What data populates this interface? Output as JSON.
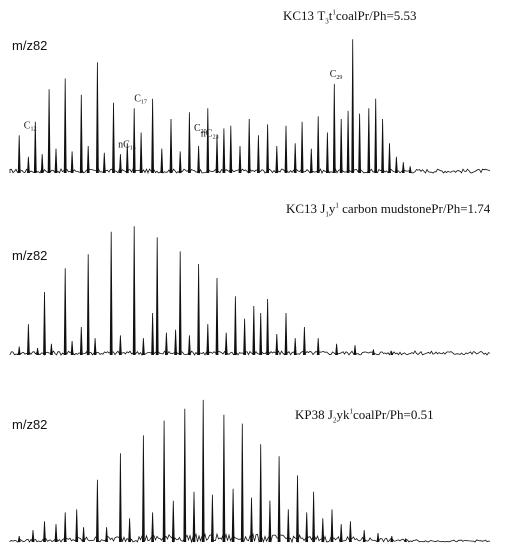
{
  "chart_data": [
    {
      "type": "line",
      "title_parts": {
        "well": "KC13",
        "formation": "T",
        "formation_sub": "3",
        "formation_letter": "t",
        "formation_sup": "1",
        "lithology": "coal",
        "ratio": "Pr/Ph=5.53"
      },
      "ylabel": "m/z82",
      "peaks": [
        {
          "x": 0.02,
          "h": 0.28
        },
        {
          "x": 0.04,
          "h": 0.12
        },
        {
          "x": 0.055,
          "h": 0.38
        },
        {
          "x": 0.07,
          "h": 0.14
        },
        {
          "x": 0.085,
          "h": 0.62
        },
        {
          "x": 0.1,
          "h": 0.18
        },
        {
          "x": 0.12,
          "h": 0.7
        },
        {
          "x": 0.135,
          "h": 0.16
        },
        {
          "x": 0.155,
          "h": 0.58
        },
        {
          "x": 0.17,
          "h": 0.2
        },
        {
          "x": 0.19,
          "h": 0.82
        },
        {
          "x": 0.205,
          "h": 0.15
        },
        {
          "x": 0.225,
          "h": 0.52
        },
        {
          "x": 0.24,
          "h": 0.14
        },
        {
          "x": 0.255,
          "h": 0.22
        },
        {
          "x": 0.27,
          "h": 0.48
        },
        {
          "x": 0.285,
          "h": 0.3
        },
        {
          "x": 0.31,
          "h": 0.55
        },
        {
          "x": 0.33,
          "h": 0.18
        },
        {
          "x": 0.35,
          "h": 0.4
        },
        {
          "x": 0.37,
          "h": 0.16
        },
        {
          "x": 0.39,
          "h": 0.45
        },
        {
          "x": 0.41,
          "h": 0.2
        },
        {
          "x": 0.43,
          "h": 0.48
        },
        {
          "x": 0.45,
          "h": 0.28
        },
        {
          "x": 0.465,
          "h": 0.33
        },
        {
          "x": 0.48,
          "h": 0.35
        },
        {
          "x": 0.5,
          "h": 0.2
        },
        {
          "x": 0.52,
          "h": 0.4
        },
        {
          "x": 0.54,
          "h": 0.28
        },
        {
          "x": 0.56,
          "h": 0.36
        },
        {
          "x": 0.58,
          "h": 0.2
        },
        {
          "x": 0.6,
          "h": 0.35
        },
        {
          "x": 0.62,
          "h": 0.22
        },
        {
          "x": 0.635,
          "h": 0.38
        },
        {
          "x": 0.655,
          "h": 0.18
        },
        {
          "x": 0.67,
          "h": 0.42
        },
        {
          "x": 0.69,
          "h": 0.3
        },
        {
          "x": 0.705,
          "h": 0.66
        },
        {
          "x": 0.72,
          "h": 0.4
        },
        {
          "x": 0.735,
          "h": 0.46
        },
        {
          "x": 0.745,
          "h": 0.99
        },
        {
          "x": 0.76,
          "h": 0.44
        },
        {
          "x": 0.78,
          "h": 0.48
        },
        {
          "x": 0.795,
          "h": 0.55
        },
        {
          "x": 0.81,
          "h": 0.4
        },
        {
          "x": 0.825,
          "h": 0.22
        },
        {
          "x": 0.84,
          "h": 0.12
        },
        {
          "x": 0.855,
          "h": 0.08
        },
        {
          "x": 0.87,
          "h": 0.05
        }
      ],
      "annotations": [
        {
          "text": "C",
          "sub": "12",
          "x": 0.03,
          "h": 0.3
        },
        {
          "text": "nC",
          "sub": "15",
          "x": 0.235,
          "h": 0.16
        },
        {
          "text": "C",
          "sub": "17",
          "x": 0.27,
          "h": 0.5
        },
        {
          "text": "C",
          "sub": "20",
          "x": 0.4,
          "h": 0.28
        },
        {
          "text": "nC",
          "sub": "23",
          "x": 0.415,
          "h": 0.24
        },
        {
          "text": "C",
          "sub": "29",
          "x": 0.695,
          "h": 0.68
        }
      ]
    },
    {
      "type": "line",
      "title_parts": {
        "well": "KC13",
        "formation": "J",
        "formation_sub": "1",
        "formation_letter": "y",
        "formation_sup": "1",
        "lithology": "carbon mudstone",
        "ratio": "Pr/Ph=1.74"
      },
      "ylabel": "m/z82",
      "peaks": [
        {
          "x": 0.02,
          "h": 0.06
        },
        {
          "x": 0.04,
          "h": 0.22
        },
        {
          "x": 0.06,
          "h": 0.05
        },
        {
          "x": 0.075,
          "h": 0.45
        },
        {
          "x": 0.09,
          "h": 0.08
        },
        {
          "x": 0.12,
          "h": 0.62
        },
        {
          "x": 0.135,
          "h": 0.1
        },
        {
          "x": 0.155,
          "h": 0.2
        },
        {
          "x": 0.17,
          "h": 0.72
        },
        {
          "x": 0.185,
          "h": 0.12
        },
        {
          "x": 0.22,
          "h": 0.88
        },
        {
          "x": 0.24,
          "h": 0.14
        },
        {
          "x": 0.27,
          "h": 0.92
        },
        {
          "x": 0.29,
          "h": 0.12
        },
        {
          "x": 0.31,
          "h": 0.3
        },
        {
          "x": 0.32,
          "h": 0.84
        },
        {
          "x": 0.34,
          "h": 0.16
        },
        {
          "x": 0.36,
          "h": 0.18
        },
        {
          "x": 0.37,
          "h": 0.74
        },
        {
          "x": 0.39,
          "h": 0.14
        },
        {
          "x": 0.41,
          "h": 0.65
        },
        {
          "x": 0.43,
          "h": 0.22
        },
        {
          "x": 0.45,
          "h": 0.55
        },
        {
          "x": 0.47,
          "h": 0.16
        },
        {
          "x": 0.49,
          "h": 0.42
        },
        {
          "x": 0.51,
          "h": 0.26
        },
        {
          "x": 0.53,
          "h": 0.35
        },
        {
          "x": 0.545,
          "h": 0.3
        },
        {
          "x": 0.56,
          "h": 0.4
        },
        {
          "x": 0.58,
          "h": 0.15
        },
        {
          "x": 0.6,
          "h": 0.3
        },
        {
          "x": 0.62,
          "h": 0.12
        },
        {
          "x": 0.64,
          "h": 0.2
        },
        {
          "x": 0.67,
          "h": 0.12
        },
        {
          "x": 0.71,
          "h": 0.08
        },
        {
          "x": 0.75,
          "h": 0.07
        },
        {
          "x": 0.79,
          "h": 0.04
        },
        {
          "x": 0.83,
          "h": 0.02
        }
      ],
      "annotations": []
    },
    {
      "type": "line",
      "title_parts": {
        "well": "KP38",
        "formation": "J",
        "formation_sub": "2",
        "formation_letter": "yk",
        "formation_sup": "1",
        "lithology": "coal",
        "ratio": "Pr/Ph=0.51"
      },
      "ylabel": "m/z82",
      "peaks": [
        {
          "x": 0.02,
          "h": 0.04
        },
        {
          "x": 0.05,
          "h": 0.08
        },
        {
          "x": 0.075,
          "h": 0.14
        },
        {
          "x": 0.1,
          "h": 0.12
        },
        {
          "x": 0.12,
          "h": 0.2
        },
        {
          "x": 0.145,
          "h": 0.22
        },
        {
          "x": 0.16,
          "h": 0.1
        },
        {
          "x": 0.19,
          "h": 0.42
        },
        {
          "x": 0.21,
          "h": 0.1
        },
        {
          "x": 0.24,
          "h": 0.6
        },
        {
          "x": 0.26,
          "h": 0.16
        },
        {
          "x": 0.29,
          "h": 0.72
        },
        {
          "x": 0.31,
          "h": 0.2
        },
        {
          "x": 0.335,
          "h": 0.82
        },
        {
          "x": 0.355,
          "h": 0.28
        },
        {
          "x": 0.38,
          "h": 0.9
        },
        {
          "x": 0.4,
          "h": 0.34
        },
        {
          "x": 0.42,
          "h": 0.96
        },
        {
          "x": 0.44,
          "h": 0.32
        },
        {
          "x": 0.465,
          "h": 0.86
        },
        {
          "x": 0.485,
          "h": 0.36
        },
        {
          "x": 0.505,
          "h": 0.8
        },
        {
          "x": 0.525,
          "h": 0.3
        },
        {
          "x": 0.545,
          "h": 0.66
        },
        {
          "x": 0.565,
          "h": 0.28
        },
        {
          "x": 0.585,
          "h": 0.58
        },
        {
          "x": 0.605,
          "h": 0.22
        },
        {
          "x": 0.625,
          "h": 0.45
        },
        {
          "x": 0.645,
          "h": 0.2
        },
        {
          "x": 0.66,
          "h": 0.34
        },
        {
          "x": 0.68,
          "h": 0.16
        },
        {
          "x": 0.7,
          "h": 0.22
        },
        {
          "x": 0.72,
          "h": 0.12
        },
        {
          "x": 0.74,
          "h": 0.14
        },
        {
          "x": 0.77,
          "h": 0.08
        },
        {
          "x": 0.8,
          "h": 0.06
        },
        {
          "x": 0.83,
          "h": 0.04
        },
        {
          "x": 0.86,
          "h": 0.02
        }
      ],
      "annotations": []
    }
  ]
}
